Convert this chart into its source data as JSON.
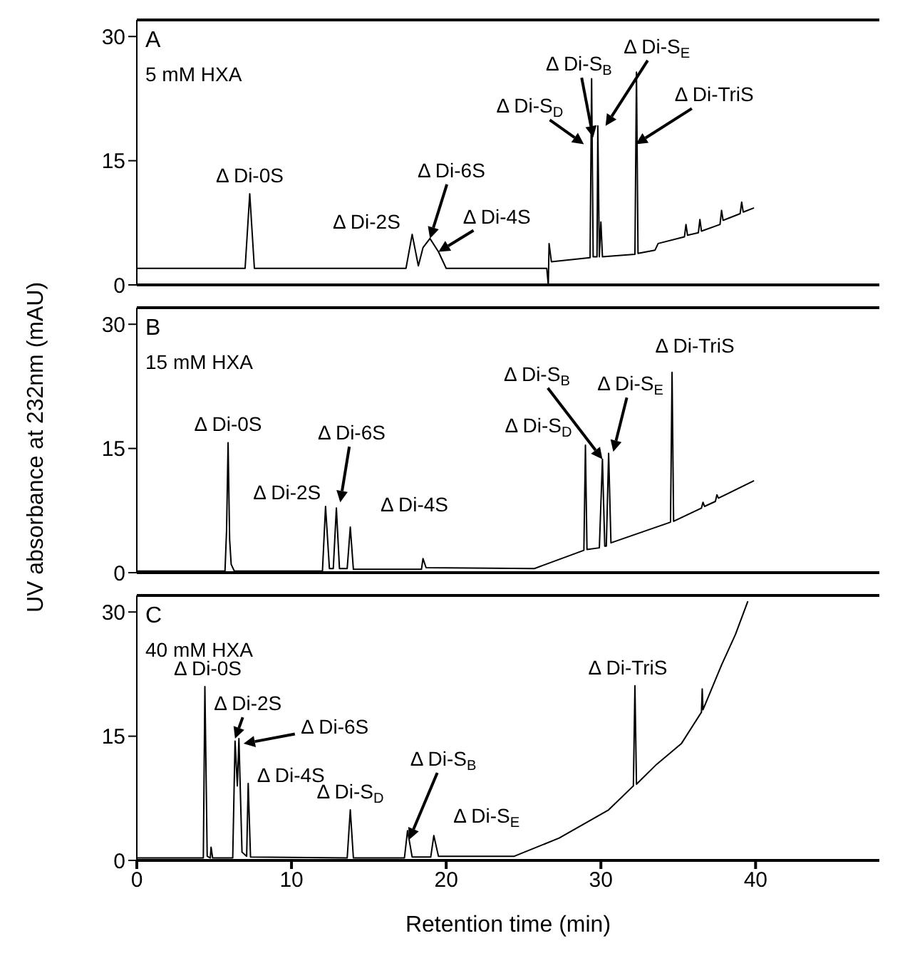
{
  "chart_data": [
    {
      "type": "line",
      "title": "A",
      "subtitle": "5 mM HXA",
      "xlim": [
        0,
        48
      ],
      "xticks": [
        0,
        10,
        20,
        30,
        40
      ],
      "ylim": [
        0,
        32
      ],
      "yticks": [
        0,
        15,
        30
      ],
      "tick_labels": "y",
      "series": [
        {
          "color": "#000000",
          "x": [
            0,
            7.0,
            7.2,
            7.3,
            7.4,
            7.6,
            17.4,
            17.8,
            18.2,
            18.5,
            18.95,
            19.5,
            20.0,
            26.5,
            26.6,
            26.65,
            26.8,
            29.3,
            29.4,
            29.5,
            29.75,
            29.8,
            29.9,
            30.0,
            30.1,
            32.2,
            32.3,
            32.4,
            33.5,
            33.7,
            35.4,
            35.5,
            35.6,
            36.3,
            36.4,
            36.5,
            37.7,
            37.8,
            37.9,
            39.0,
            39.1,
            39.2,
            39.9
          ],
          "values": [
            2.0,
            2.0,
            8.0,
            11.0,
            8.0,
            2.0,
            2.0,
            6.1,
            2.3,
            4.5,
            5.6,
            4.0,
            2.0,
            2.0,
            0,
            5.0,
            2.8,
            3.3,
            24.9,
            3.4,
            3.4,
            19.2,
            3.4,
            7.6,
            3.4,
            3.7,
            25.7,
            3.8,
            4.2,
            5.0,
            5.8,
            7.3,
            6.0,
            6.3,
            7.9,
            6.5,
            7.3,
            9.0,
            7.8,
            8.6,
            10.0,
            8.8,
            9.3
          ]
        }
      ],
      "annotations": [
        {
          "text": "Δ Di-0S",
          "x": 7.3,
          "y": 11.0
        },
        {
          "text": "Δ Di-2S",
          "x": 17.8,
          "y": 6.1
        },
        {
          "text": "Δ Di-6S",
          "x": 18.95,
          "y": 5.6
        },
        {
          "text": "Δ Di-4S",
          "x": 19.5,
          "y": 4.0
        },
        {
          "text": "Δ Di-S$_{D}$",
          "x": 28.9,
          "y": 17.0
        },
        {
          "text": "Δ Di-S$_{B}$",
          "x": 29.5,
          "y": 17.8
        },
        {
          "text": "Δ Di-S$_{E}$",
          "x": 30.3,
          "y": 19.2
        },
        {
          "text": "Δ Di-TriS",
          "x": 32.26,
          "y": 17.0
        }
      ]
    },
    {
      "type": "line",
      "title": "B",
      "subtitle": "15 mM HXA",
      "ylabel": "UV absorbance at 232nm (mAU)",
      "xlim": [
        0,
        48
      ],
      "xticks": [
        0,
        10,
        20,
        30,
        40
      ],
      "ylim": [
        0,
        32
      ],
      "yticks": [
        0,
        15,
        30
      ],
      "tick_labels": "y",
      "series": [
        {
          "color": "#000000",
          "x": [
            0,
            5.7,
            5.8,
            5.9,
            6.0,
            6.1,
            6.3,
            12.0,
            12.2,
            12.45,
            12.7,
            12.9,
            13.1,
            13.6,
            13.8,
            14.0,
            18.4,
            18.5,
            18.7,
            25.7,
            28.9,
            29.0,
            29.1,
            29.9,
            30.1,
            30.25,
            30.35,
            30.5,
            30.65,
            34.5,
            34.6,
            34.7,
            36.5,
            36.6,
            36.7,
            37.4,
            37.5,
            37.6,
            39.9
          ],
          "values": [
            0.2,
            0.2,
            5,
            15.7,
            4,
            1.0,
            0.2,
            0.2,
            8.0,
            0.5,
            0.5,
            7.8,
            0.5,
            0.5,
            5.5,
            0.4,
            0.4,
            1.7,
            0.6,
            0.5,
            2.7,
            15.4,
            2.8,
            3.0,
            13.7,
            3.2,
            3.2,
            14.4,
            3.6,
            6.1,
            24.2,
            6.2,
            7.8,
            8.5,
            8.0,
            8.6,
            9.4,
            9.0,
            11.1
          ]
        }
      ],
      "annotations": [
        {
          "text": "Δ Di-0S",
          "x": 5.9,
          "y": 15.7
        },
        {
          "text": "Δ Di-2S",
          "x": 12.2,
          "y": 8.0
        },
        {
          "text": "Δ Di-6S",
          "x": 13.15,
          "y": 8.5
        },
        {
          "text": "Δ Di-4S",
          "x": 18.5,
          "y": 1.7
        },
        {
          "text": "Δ Di-S$_{D}$",
          "x": 29.0,
          "y": 15.4
        },
        {
          "text": "Δ Di-S$_{B}$",
          "x": 30.1,
          "y": 13.7
        },
        {
          "text": "Δ Di-S$_{E}$",
          "x": 30.8,
          "y": 14.6
        },
        {
          "text": "Δ Di-TriS",
          "x": 34.6,
          "y": 24.2
        }
      ]
    },
    {
      "type": "line",
      "title": "C",
      "subtitle": "40 mM HXA",
      "xlabel": "Retention time (min)",
      "xlim": [
        0,
        48
      ],
      "xticks": [
        0,
        10,
        20,
        30,
        40
      ],
      "ylim": [
        0,
        32
      ],
      "yticks": [
        0,
        15,
        30
      ],
      "series": [
        {
          "color": "#000000",
          "x": [
            0,
            4.3,
            4.4,
            4.55,
            4.75,
            4.8,
            4.9,
            6.2,
            6.35,
            6.5,
            6.6,
            6.8,
            7.1,
            7.2,
            7.35,
            13.6,
            13.8,
            14.0,
            17.3,
            17.5,
            17.8,
            19.0,
            19.2,
            19.5,
            24.4,
            27.3,
            30.5,
            32.1,
            32.2,
            32.3,
            33.6,
            35.2,
            36.5,
            36.55,
            36.6,
            37.8,
            38.7,
            39.5
          ],
          "values": [
            0.3,
            0.3,
            21.0,
            0.5,
            0.3,
            1.6,
            0.3,
            0.3,
            14.4,
            9.0,
            14.7,
            1.0,
            0.5,
            9.3,
            0.4,
            0.3,
            6.1,
            0.3,
            0.3,
            3.6,
            0.4,
            0.4,
            3.0,
            0.5,
            0.5,
            2.7,
            6.1,
            9.0,
            21.1,
            9.2,
            11.6,
            14.1,
            17.9,
            20.7,
            18.2,
            23.6,
            27.3,
            31.3
          ]
        }
      ],
      "annotations": [
        {
          "text": "Δ Di-0S",
          "x": 4.4,
          "y": 21.0
        },
        {
          "text": "Δ Di-2S",
          "x": 6.35,
          "y": 14.7
        },
        {
          "text": "Δ Di-6S",
          "x": 6.9,
          "y": 14.1
        },
        {
          "text": "Δ Di-4S",
          "x": 7.2,
          "y": 9.3
        },
        {
          "text": "Δ Di-S$_{D}$",
          "x": 13.8,
          "y": 6.1
        },
        {
          "text": "Δ Di-S$_{B}$",
          "x": 17.6,
          "y": 2.5
        },
        {
          "text": "Δ Di-S$_{E}$",
          "x": 19.2,
          "y": 3.0
        },
        {
          "text": "Δ Di-TriS",
          "x": 32.2,
          "y": 21.1
        }
      ]
    }
  ]
}
